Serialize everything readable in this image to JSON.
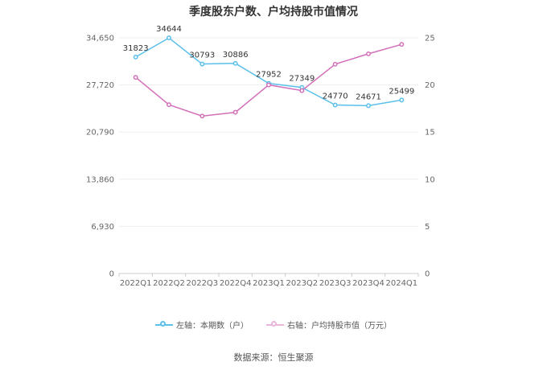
{
  "chart_data": {
    "type": "line",
    "title": "季度股东户数、户均持股市值情况",
    "categories": [
      "2022Q1",
      "2022Q2",
      "2022Q3",
      "2022Q4",
      "2023Q1",
      "2023Q2",
      "2023Q3",
      "2023Q4",
      "2024Q1"
    ],
    "left_axis": {
      "ylim": [
        0,
        34650
      ],
      "ticks": [
        "0",
        "6,930",
        "13,860",
        "20,790",
        "27,720",
        "34,650"
      ]
    },
    "right_axis": {
      "ylim": [
        0,
        25
      ],
      "ticks": [
        "0",
        "5",
        "10",
        "15",
        "20",
        "25"
      ]
    },
    "series": [
      {
        "name": "左轴：本期数（户）",
        "axis": "left",
        "color": "#5bc0eb",
        "values": [
          31823,
          34644,
          30793,
          30886,
          27952,
          27349,
          24770,
          24671,
          25499
        ],
        "labels": [
          "31823",
          "34644",
          "30793",
          "30886",
          "27952",
          "27349",
          "24770",
          "24671",
          "25499"
        ]
      },
      {
        "name": "右轴：户均持股市值（万元）",
        "axis": "right",
        "color": "#d36fb9",
        "values": [
          20.8,
          17.9,
          16.7,
          17.1,
          20.0,
          19.4,
          22.2,
          23.3,
          24.3
        ]
      }
    ],
    "grid": true,
    "legend_position": "bottom"
  },
  "source": "数据来源：恒生聚源"
}
